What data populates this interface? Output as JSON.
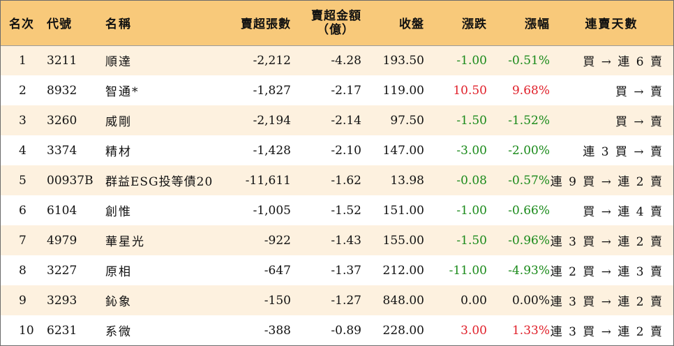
{
  "headers": {
    "rank": "名次",
    "code": "代號",
    "name": "名稱",
    "net_sell_lots": "賣超張數",
    "net_sell_amount_line1": "賣超金額",
    "net_sell_amount_line2": "（億）",
    "close": "收盤",
    "change": "漲跌",
    "change_pct": "漲幅",
    "consecutive_days": "連賣天數"
  },
  "colors": {
    "header_bg": "#f8c97a",
    "odd_row_bg": "#fdf1df",
    "down": "#1a8a1a",
    "up": "#e0202a"
  },
  "rows": [
    {
      "rank": "1",
      "code": "3211",
      "name": "順達",
      "lots": "-2,212",
      "amount": "-4.28",
      "close": "193.50",
      "change": "-1.00",
      "pct": "-0.51%",
      "days": "買 → 連 6 賣",
      "dir": "neg"
    },
    {
      "rank": "2",
      "code": "8932",
      "name": "智通*",
      "lots": "-1,827",
      "amount": "-2.17",
      "close": "119.00",
      "change": "10.50",
      "pct": "9.68%",
      "days": "買 → 賣",
      "dir": "pos"
    },
    {
      "rank": "3",
      "code": "3260",
      "name": "威剛",
      "lots": "-2,194",
      "amount": "-2.14",
      "close": "97.50",
      "change": "-1.50",
      "pct": "-1.52%",
      "days": "買 → 賣",
      "dir": "neg"
    },
    {
      "rank": "4",
      "code": "3374",
      "name": "精材",
      "lots": "-1,428",
      "amount": "-2.10",
      "close": "147.00",
      "change": "-3.00",
      "pct": "-2.00%",
      "days": "連 3 買 → 賣",
      "dir": "neg"
    },
    {
      "rank": "5",
      "code": "00937B",
      "name": "群益ESG投等債20",
      "lots": "-11,611",
      "amount": "-1.62",
      "close": "13.98",
      "change": "-0.08",
      "pct": "-0.57%",
      "days": "連 9 買 → 連 2 賣",
      "dir": "neg"
    },
    {
      "rank": "6",
      "code": "6104",
      "name": "創惟",
      "lots": "-1,005",
      "amount": "-1.52",
      "close": "151.00",
      "change": "-1.00",
      "pct": "-0.66%",
      "days": "買 → 連 4 賣",
      "dir": "neg"
    },
    {
      "rank": "7",
      "code": "4979",
      "name": "華星光",
      "lots": "-922",
      "amount": "-1.43",
      "close": "155.00",
      "change": "-1.50",
      "pct": "-0.96%",
      "days": "連 3 買 → 連 2 賣",
      "dir": "neg"
    },
    {
      "rank": "8",
      "code": "3227",
      "name": "原相",
      "lots": "-647",
      "amount": "-1.37",
      "close": "212.00",
      "change": "-11.00",
      "pct": "-4.93%",
      "days": "連 2 買 → 連 3 賣",
      "dir": "neg"
    },
    {
      "rank": "9",
      "code": "3293",
      "name": "鈊象",
      "lots": "-150",
      "amount": "-1.27",
      "close": "848.00",
      "change": "0.00",
      "pct": "0.00%",
      "days": "連 3 買 → 連 2 賣",
      "dir": "flat"
    },
    {
      "rank": "10",
      "code": "6231",
      "name": "系微",
      "lots": "-388",
      "amount": "-0.89",
      "close": "228.00",
      "change": "3.00",
      "pct": "1.33%",
      "days": "連 3 買 → 連 2 賣",
      "dir": "pos"
    }
  ]
}
